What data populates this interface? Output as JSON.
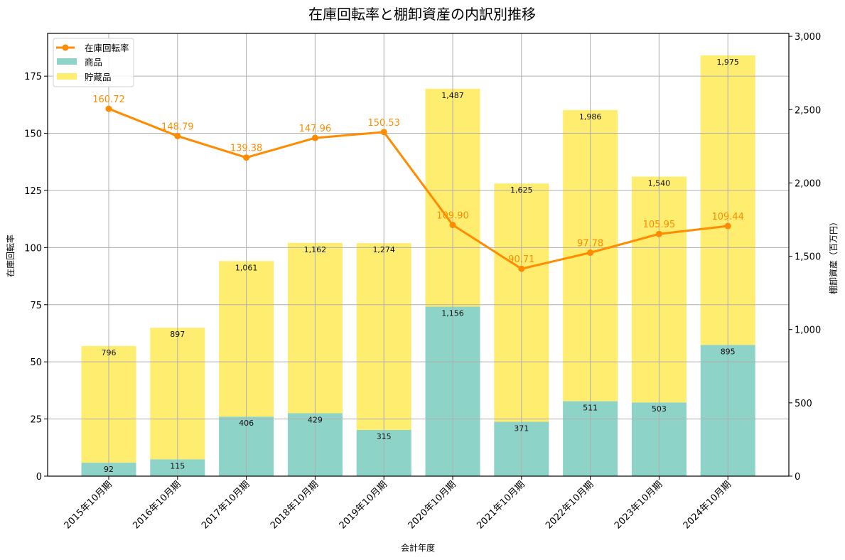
{
  "chart_data": {
    "type": "bar+line",
    "title": "在庫回転率と棚卸資産の内訳別推移",
    "xlabel": "会計年度",
    "ylabel": "在庫回転率",
    "ylabel_right": "棚卸資産（百万円）",
    "categories": [
      "2015年10月期",
      "2016年10月期",
      "2017年10月期",
      "2018年10月期",
      "2019年10月期",
      "2020年10月期",
      "2021年10月期",
      "2022年10月期",
      "2023年10月期",
      "2024年10月期"
    ],
    "series": [
      {
        "name": "在庫回転率",
        "type": "line",
        "axis": "left",
        "color": "#ff8c00",
        "values": [
          160.72,
          148.79,
          139.38,
          147.96,
          150.53,
          109.9,
          90.71,
          97.78,
          105.95,
          109.44
        ]
      },
      {
        "name": "商品",
        "type": "bar",
        "stack": "inventory",
        "axis": "right",
        "color": "#8dd3c7",
        "values": [
          92,
          115,
          406,
          429,
          315,
          1156,
          371,
          511,
          503,
          895
        ]
      },
      {
        "name": "貯蔵品",
        "type": "bar",
        "stack": "inventory",
        "axis": "right",
        "color": "#ffed6f",
        "values": [
          796,
          897,
          1061,
          1162,
          1274,
          1487,
          1625,
          1986,
          1540,
          1975
        ]
      }
    ],
    "ylim": [
      0,
      193.7
    ],
    "ylim_right": [
      0,
      3020
    ],
    "yticks": [
      0,
      25,
      50,
      75,
      100,
      125,
      150,
      175
    ],
    "yticks_right": [
      "0",
      "500",
      "1,000",
      "1,500",
      "2,000",
      "2,500",
      "3,000"
    ],
    "yticks_right_values": [
      0,
      500,
      1000,
      1500,
      2000,
      2500,
      3000
    ],
    "grid": true,
    "legend_position": "upper left",
    "legend": [
      "在庫回転率",
      "商品",
      "貯蔵品"
    ]
  }
}
